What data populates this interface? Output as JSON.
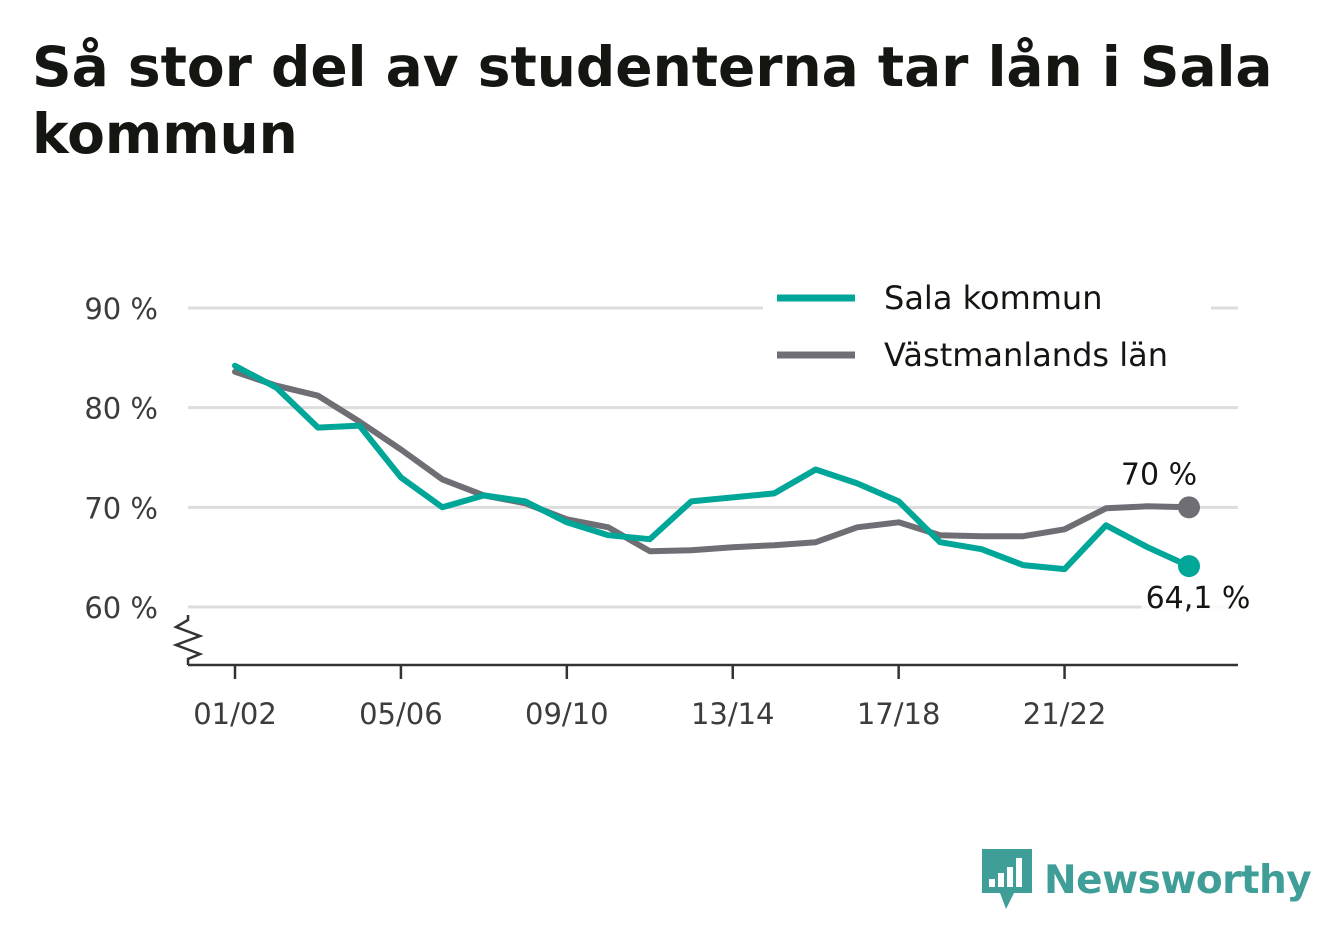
{
  "title": "Så stor del av studenterna tar lån i Sala kommun",
  "brand": {
    "name": "Newsworthy",
    "logo_icon": "newsworthy-logo-icon"
  },
  "colors": {
    "sala": "#00a698",
    "vastmanland": "#6f6e75",
    "grid": "#dddddd",
    "axis": "#333333"
  },
  "chart_data": {
    "type": "line",
    "title": "Så stor del av studenterna tar lån i Sala kommun",
    "xlabel": "",
    "ylabel": "",
    "x": [
      "01/02",
      "02/03",
      "03/04",
      "04/05",
      "05/06",
      "06/07",
      "07/08",
      "08/09",
      "09/10",
      "10/11",
      "11/12",
      "12/13",
      "13/14",
      "14/15",
      "15/16",
      "16/17",
      "17/18",
      "18/19",
      "19/20",
      "20/21",
      "21/22",
      "22/23",
      "23/24",
      "24/25"
    ],
    "x_tick_labels": [
      "01/02",
      "05/06",
      "09/10",
      "13/14",
      "17/18",
      "21/22"
    ],
    "y_ticks": [
      60,
      70,
      80,
      90
    ],
    "y_tick_labels": [
      "60 %",
      "70 %",
      "80 %",
      "90 %"
    ],
    "ylim": [
      54,
      92
    ],
    "y_axis_break": true,
    "grid": true,
    "legend_position": "top-right",
    "series": [
      {
        "name": "Sala kommun",
        "color": "#00a698",
        "values": [
          84.2,
          82.0,
          78.0,
          78.2,
          73.0,
          70.0,
          71.2,
          70.6,
          68.5,
          67.2,
          66.8,
          70.6,
          71.0,
          71.4,
          73.8,
          72.4,
          70.6,
          66.5,
          65.8,
          64.2,
          63.8,
          68.2,
          66.0,
          64.1
        ],
        "end_label": "64,1 %"
      },
      {
        "name": "Västmanlands län",
        "color": "#6f6e75",
        "values": [
          83.6,
          82.2,
          81.2,
          78.6,
          75.8,
          72.8,
          71.2,
          70.4,
          68.8,
          68.0,
          65.6,
          65.7,
          66.0,
          66.2,
          66.5,
          68.0,
          68.5,
          67.2,
          67.1,
          67.1,
          67.8,
          69.9,
          70.1,
          70.0
        ],
        "end_label": "70 %"
      }
    ]
  }
}
